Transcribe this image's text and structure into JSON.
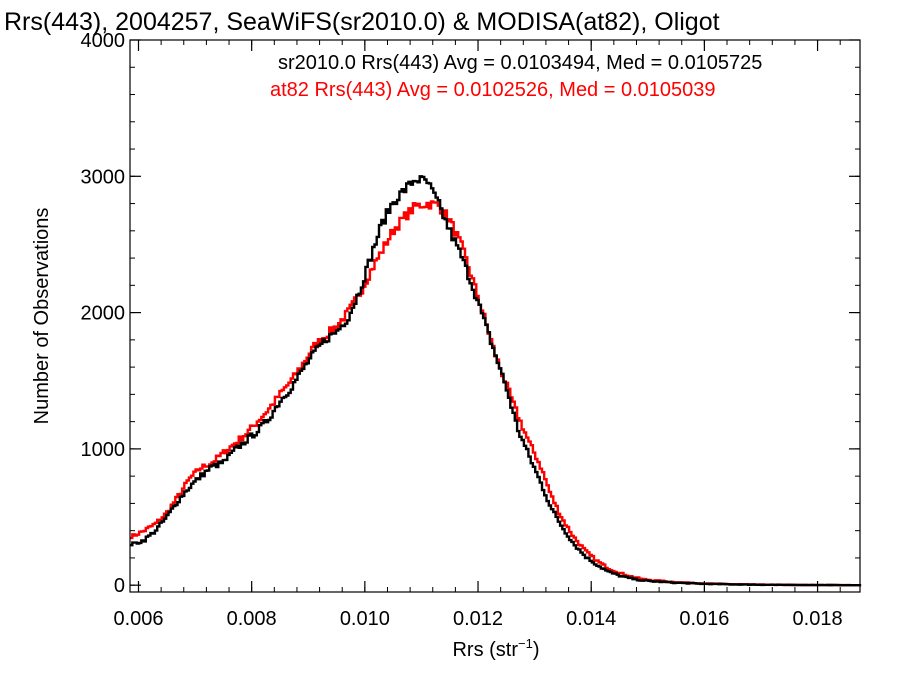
{
  "chart_data": {
    "type": "line",
    "title": "Rrs(443), 2004257, SeaWiFS(sr2010.0) & MODISA(at82), Oligot",
    "xlabel_main": "Rrs (str",
    "xlabel_sup": "−1",
    "xlabel_close": ")",
    "ylabel": "Number of Observations",
    "xlim": [
      0.00585,
      0.01875
    ],
    "ylim": [
      -50,
      4000
    ],
    "x_ticks": [
      0.006,
      0.008,
      0.01,
      0.012,
      0.014,
      0.016,
      0.018
    ],
    "x_tick_labels": [
      "0.006",
      "0.008",
      "0.010",
      "0.012",
      "0.014",
      "0.016",
      "0.018"
    ],
    "y_ticks": [
      0,
      1000,
      2000,
      3000,
      4000
    ],
    "y_tick_labels": [
      "0",
      "1000",
      "2000",
      "3000",
      "4000"
    ],
    "annotations": [
      "sr2010.0 Rrs(443) Avg = 0.0103494, Med = 0.0105725",
      "at82 Rrs(443) Avg = 0.0102526, Med = 0.0105039"
    ],
    "series": [
      {
        "color": "#000000",
        "x": [
          0.0059,
          0.0061,
          0.0063,
          0.0065,
          0.0067,
          0.0069,
          0.0071,
          0.0073,
          0.0075,
          0.0077,
          0.0079,
          0.0081,
          0.0083,
          0.0085,
          0.0087,
          0.0089,
          0.0091,
          0.0093,
          0.0095,
          0.0097,
          0.0099,
          0.0101,
          0.0103,
          0.0105,
          0.0107,
          0.0109,
          0.0111,
          0.0113,
          0.0115,
          0.0117,
          0.0119,
          0.0121,
          0.0123,
          0.0125,
          0.0127,
          0.0129,
          0.0131,
          0.0133,
          0.0135,
          0.0137,
          0.0139,
          0.0141,
          0.0143,
          0.0145,
          0.0147,
          0.0149,
          0.0151,
          0.0155,
          0.016,
          0.0165,
          0.017,
          0.018,
          0.01875
        ],
        "y": [
          300,
          330,
          400,
          500,
          620,
          720,
          800,
          870,
          900,
          990,
          1060,
          1130,
          1220,
          1350,
          1450,
          1580,
          1700,
          1800,
          1860,
          1960,
          2150,
          2400,
          2650,
          2810,
          2900,
          2980,
          2960,
          2800,
          2600,
          2420,
          2200,
          1950,
          1700,
          1450,
          1150,
          950,
          760,
          560,
          420,
          300,
          210,
          150,
          100,
          70,
          50,
          35,
          28,
          18,
          10,
          6,
          3,
          1,
          0
        ]
      },
      {
        "color": "#ff0000",
        "x": [
          0.0059,
          0.0061,
          0.0063,
          0.0065,
          0.0067,
          0.0069,
          0.0071,
          0.0073,
          0.0075,
          0.0077,
          0.0079,
          0.0081,
          0.0083,
          0.0085,
          0.0087,
          0.0089,
          0.0091,
          0.0093,
          0.0095,
          0.0097,
          0.0099,
          0.0101,
          0.0103,
          0.0105,
          0.0107,
          0.0109,
          0.0111,
          0.0113,
          0.0115,
          0.0117,
          0.0119,
          0.0121,
          0.0123,
          0.0125,
          0.0127,
          0.0129,
          0.0131,
          0.0133,
          0.0135,
          0.0137,
          0.0139,
          0.0141,
          0.0143,
          0.0145,
          0.0147,
          0.0149,
          0.0151,
          0.0155,
          0.016,
          0.0165,
          0.017,
          0.018,
          0.01875
        ],
        "y": [
          360,
          400,
          450,
          530,
          650,
          780,
          860,
          900,
          970,
          1040,
          1110,
          1200,
          1290,
          1400,
          1500,
          1620,
          1750,
          1830,
          1900,
          2000,
          2130,
          2300,
          2450,
          2600,
          2700,
          2780,
          2800,
          2790,
          2680,
          2500,
          2250,
          1980,
          1700,
          1470,
          1250,
          1050,
          880,
          650,
          480,
          350,
          250,
          180,
          125,
          90,
          65,
          45,
          35,
          22,
          12,
          7,
          4,
          1,
          0
        ]
      }
    ]
  }
}
